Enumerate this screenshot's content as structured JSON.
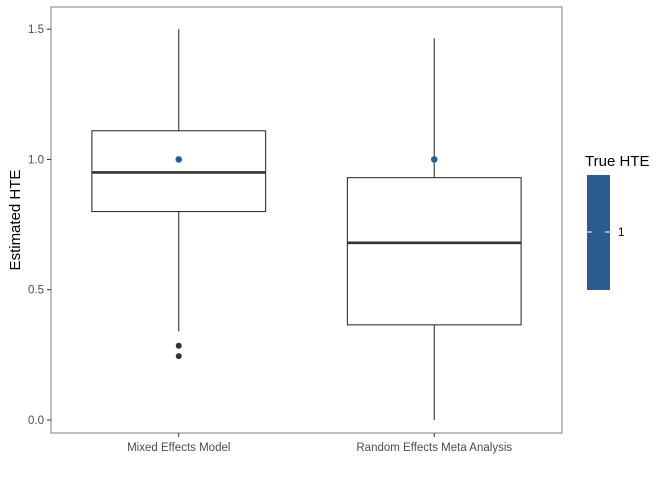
{
  "chart_data": {
    "type": "boxplot",
    "ylabel": "Estimated HTE",
    "xlabel": "",
    "ylim": [
      -0.05,
      1.585
    ],
    "yticks": [
      0.0,
      0.5,
      1.0,
      1.5
    ],
    "ytick_labels": [
      "0.0",
      "0.5",
      "1.0",
      "1.5"
    ],
    "grid": false,
    "categories": [
      "Mixed Effects Model",
      "Random Effects Meta Analysis"
    ],
    "boxes": [
      {
        "category": "Mixed Effects Model",
        "whisker_low": 0.34,
        "q1": 0.8,
        "median": 0.95,
        "q3": 1.11,
        "whisker_high": 1.5,
        "outliers": [
          0.285,
          0.245
        ],
        "true_value": 1.0
      },
      {
        "category": "Random Effects Meta Analysis",
        "whisker_low": 0.0,
        "q1": 0.365,
        "median": 0.68,
        "q3": 0.93,
        "whisker_high": 1.465,
        "outliers": [],
        "true_value": 1.0
      }
    ],
    "legend": {
      "title": "True HTE",
      "placement": "right",
      "color": "#2c5b8e",
      "labels": [
        "1"
      ]
    },
    "colors": {
      "box_stroke": "#333333",
      "panel_border": "#7f7f7f",
      "true_point": "#2c5b8e",
      "outlier": "#333333"
    }
  }
}
